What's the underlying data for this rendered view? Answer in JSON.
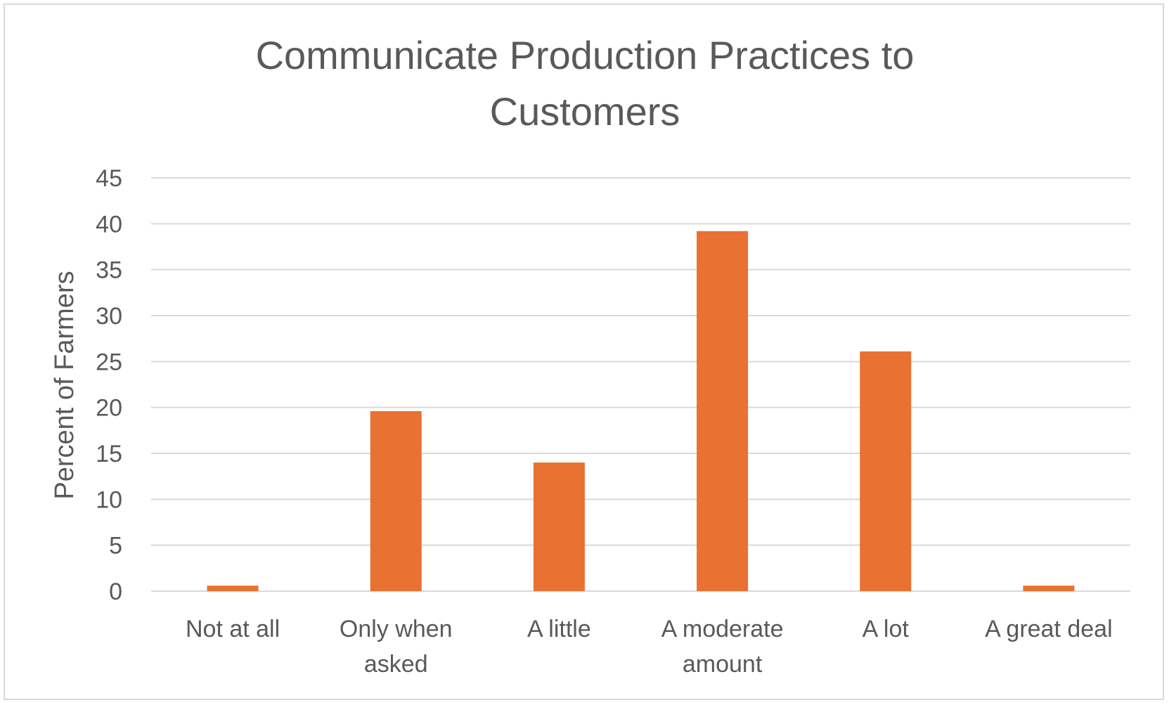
{
  "chart_data": {
    "type": "bar",
    "title_lines": [
      "Communicate Production Practices to",
      "Customers"
    ],
    "xlabel": "",
    "ylabel": "Percent of Farmers",
    "categories": [
      "Not at all",
      "Only when asked",
      "A little",
      "A moderate amount",
      "A lot",
      "A great deal"
    ],
    "category_lines": [
      [
        "Not at all"
      ],
      [
        "Only when",
        "asked"
      ],
      [
        "A little"
      ],
      [
        "A moderate",
        "amount"
      ],
      [
        "A lot"
      ],
      [
        "A great deal"
      ]
    ],
    "series": [
      {
        "values": [
          0.6,
          19.6,
          14.0,
          39.2,
          26.1,
          0.6
        ]
      }
    ],
    "ylim": [
      0,
      45
    ],
    "yticks": [
      "0",
      "5",
      "10",
      "15",
      "20",
      "25",
      "30",
      "35",
      "40",
      "45"
    ],
    "grid": true,
    "legend": "none",
    "bar_color": "#e97132",
    "grid_color": "#d9d9d9",
    "text_color": "#595959"
  }
}
